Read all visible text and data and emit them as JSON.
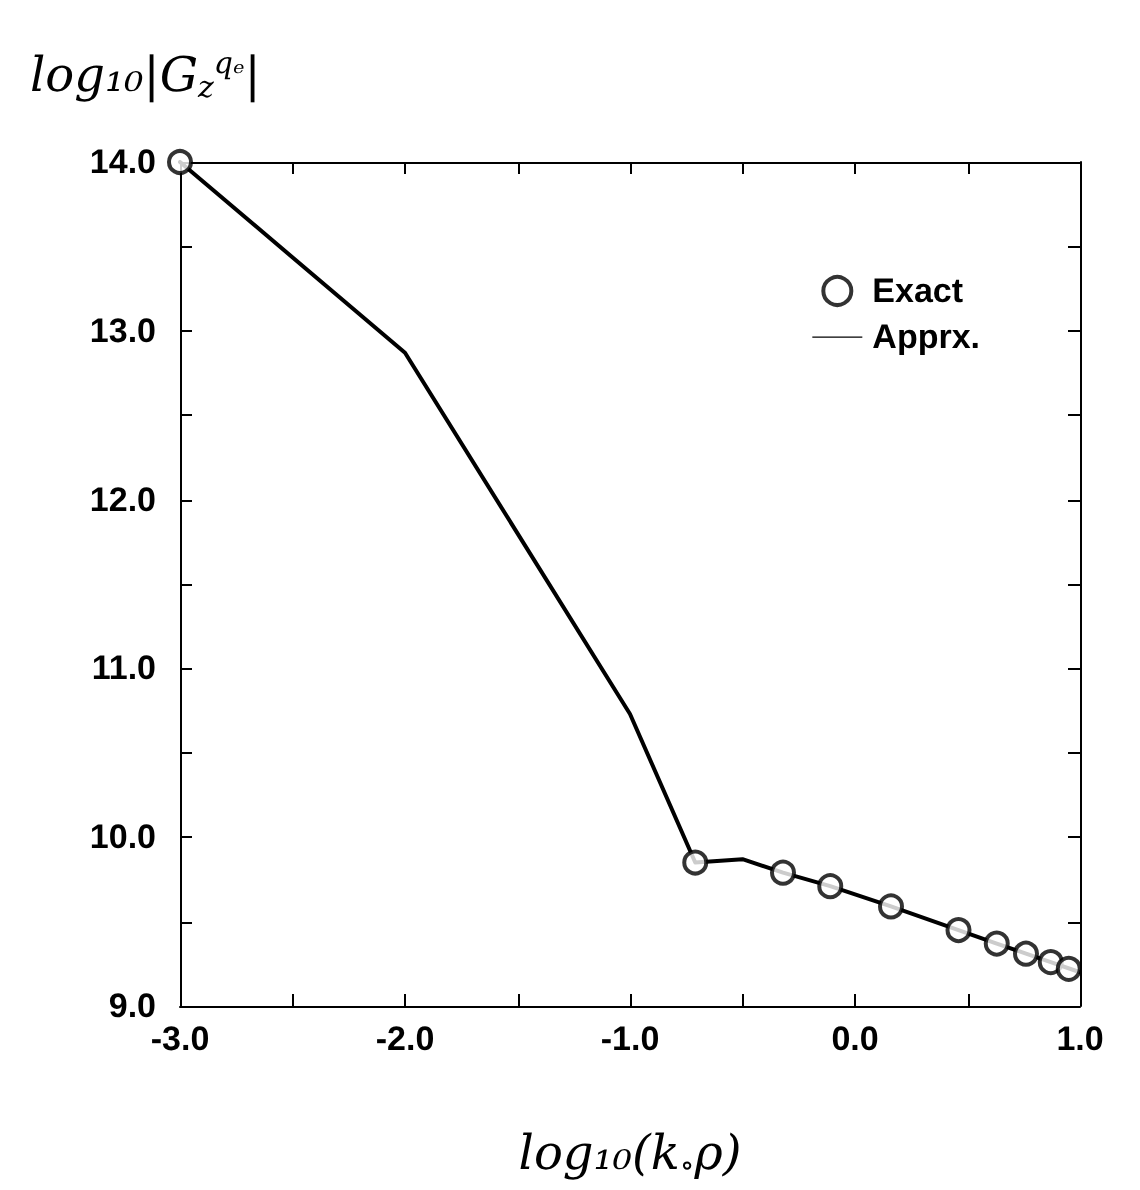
{
  "chart_data": {
    "type": "line",
    "xlabel": "log₁₀(k$_{∘}$ρ)",
    "ylabel": "log₁₀|G$_{z}$$^{qₑ}$|",
    "xlim": [
      -3,
      1
    ],
    "ylim": [
      9,
      14
    ],
    "xticks": [
      {
        "value": -3,
        "label": "-3.0"
      },
      {
        "value": -2.5,
        "label": null
      },
      {
        "value": -2,
        "label": "-2.0"
      },
      {
        "value": -1.5,
        "label": null
      },
      {
        "value": -1,
        "label": "-1.0"
      },
      {
        "value": -0.5,
        "label": null
      },
      {
        "value": 0,
        "label": "0.0"
      },
      {
        "value": 0.5,
        "label": null
      },
      {
        "value": 1,
        "label": "1.0"
      }
    ],
    "yticks": [
      {
        "value": 9,
        "label": "9.0"
      },
      {
        "value": 9.5,
        "label": null
      },
      {
        "value": 10,
        "label": "10.0"
      },
      {
        "value": 10.5,
        "label": null
      },
      {
        "value": 11,
        "label": "11.0"
      },
      {
        "value": 11.5,
        "label": null
      },
      {
        "value": 12,
        "label": "12.0"
      },
      {
        "value": 12.5,
        "label": null
      },
      {
        "value": 13,
        "label": "13.0"
      },
      {
        "value": 13.5,
        "label": null
      },
      {
        "value": 14,
        "label": "14.0"
      }
    ],
    "legend": "top right",
    "grid": false,
    "series": [
      {
        "name": "Exact",
        "type": "scatter",
        "marker": "circle",
        "color": "#000000",
        "x": [
          -3,
          -0.71,
          -0.32,
          -0.11,
          0.16,
          0.46,
          0.63,
          0.76,
          0.87,
          0.95
        ],
        "values": [
          14.0,
          9.85,
          9.79,
          9.71,
          9.59,
          9.45,
          9.37,
          9.31,
          9.26,
          9.22
        ]
      },
      {
        "name": "Apprx.",
        "marker": "none",
        "line_style": "solid",
        "color": "#000000",
        "x": [
          -3,
          -2,
          -1,
          -0.71,
          -0.5,
          -0.32,
          -0.11,
          0.16,
          0.46,
          0.63,
          0.76,
          0.87,
          1.0
        ],
        "values": [
          14.0,
          12.87,
          10.73,
          9.85,
          9.87,
          9.79,
          9.71,
          9.59,
          9.45,
          9.37,
          9.31,
          9.26,
          9.2
        ]
      }
    ]
  }
}
